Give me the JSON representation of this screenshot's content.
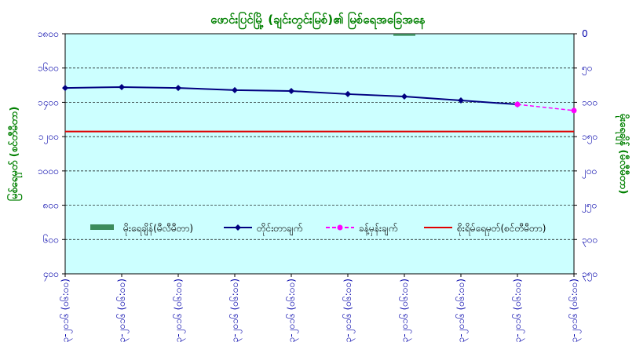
{
  "chart_data": {
    "type": "line",
    "title": "ဖောင်းပြင်မြို့ (ချင်းတွင်းမြစ်)၏ မြစ်ရေအခြေအနေ",
    "y_label": "မြစ်ရေမှတ် (စင်တီမီတာ)",
    "y2_label": "မိုးရေချိန် (မီလီမီတာ)",
    "categories": [
      "၉-၃-၂၀၁၆ (၀၆:၀၀)",
      "၁၀-၃-၂၀၁၆ (၀၆:၀၀)",
      "၁၁-၃-၂၀၁၆ (၀၆:၀၀)",
      "၁၂-၃-၂၀၁၆ (၀၆:၀၀)",
      "၁၃-၃-၂၀၁၆ (၀၆:၀၀)",
      "၁၄-၃-၂၀၁၆ (၀၆:၀၀)",
      "၁၅-၃-၂၀၁၆ (၀၆:၀၀)",
      "၁၆-၃-၂၀၁၆ (၀၆:၀၀)",
      "၁၇-၃-၂၀၁၆ (၀၆:၀၀)",
      "၁၈-၃-၂၀၁၆ (၀၆:၀၀)"
    ],
    "series": [
      {
        "name": "မိုးရေချိန်(မီလီမီတာ)",
        "color": "#3c8c5c",
        "kind": "bar",
        "axis": "y2",
        "values": [
          0,
          0,
          0,
          0,
          0,
          0,
          3,
          0,
          0,
          0
        ]
      },
      {
        "name": "တိုင်းတာချက်",
        "color": "#000080",
        "kind": "line",
        "values": [
          1484,
          1489,
          1484,
          1471,
          1466,
          1448,
          1434,
          1411,
          1388,
          null
        ]
      },
      {
        "name": "ခန့်မှန်းချက်",
        "color": "#ff00ff",
        "kind": "dashed",
        "values": [
          null,
          null,
          null,
          null,
          null,
          null,
          null,
          null,
          1388,
          1352
        ]
      }
    ],
    "danger_level": {
      "name": "စိုးရိမ်ရေမှတ်(စင်တီမီတာ)",
      "value": 1230,
      "color": "#e00000"
    },
    "ylim": [
      400,
      1800
    ],
    "yticks": [
      {
        "value": 400,
        "label": "၄၀၀"
      },
      {
        "value": 600,
        "label": "၆၀၀"
      },
      {
        "value": 800,
        "label": "၈၀၀"
      },
      {
        "value": 1000,
        "label": "၁၀၀၀"
      },
      {
        "value": 1200,
        "label": "၁၂၀၀"
      },
      {
        "value": 1400,
        "label": "၁၄၀၀"
      },
      {
        "value": 1600,
        "label": "၁၆၀၀"
      },
      {
        "value": 1800,
        "label": "၁၈၀၀"
      }
    ],
    "y2lim": [
      0,
      350
    ],
    "y2_inverted": true,
    "y2ticks": [
      0,
      {
        "value": 50,
        "label": "၅၀"
      },
      {
        "value": 100,
        "label": "၁၀၀"
      },
      {
        "value": 150,
        "label": "၁၅၀"
      },
      {
        "value": 200,
        "label": "၂၀၀"
      },
      {
        "value": 250,
        "label": "၂၅၀"
      },
      {
        "value": 300,
        "label": "၃၀၀"
      },
      {
        "value": 350,
        "label": "၃၅၀"
      }
    ],
    "grid": true
  }
}
